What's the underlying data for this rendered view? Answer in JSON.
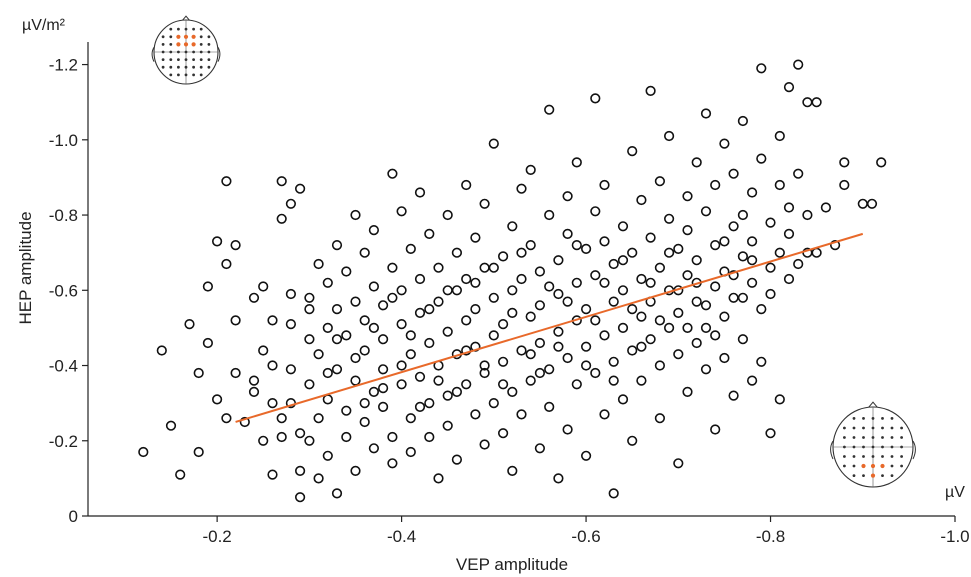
{
  "chart_data": {
    "type": "scatter",
    "xlabel": "VEP amplitude",
    "ylabel": "HEP amplitude",
    "x_unit": "µV",
    "y_unit": "µV/m²",
    "x_ticks": [
      -0.2,
      -0.4,
      -0.6,
      -0.8,
      -1.0
    ],
    "x_tick_labels": [
      "-0.2",
      "-0.4",
      "-0.6",
      "-0.8",
      "-1.0"
    ],
    "y_ticks": [
      0,
      -0.2,
      -0.4,
      -0.6,
      -0.8,
      -1.0,
      -1.2
    ],
    "y_tick_labels": [
      "0",
      "-0.2",
      "-0.4",
      "-0.6",
      "-0.8",
      "-1.0",
      "-1.2"
    ],
    "xlim": [
      -0.06,
      -1.0
    ],
    "ylim": [
      0,
      -1.26
    ],
    "grid": false,
    "marker": "open-circle",
    "regression_line": {
      "x": [
        -0.22,
        -0.9
      ],
      "y": [
        -0.25,
        -0.75
      ],
      "color": "#e8692a"
    },
    "highlight_color": "#e8692a",
    "points": [
      [
        -0.12,
        -0.17
      ],
      [
        -0.14,
        -0.44
      ],
      [
        -0.15,
        -0.24
      ],
      [
        -0.16,
        -0.11
      ],
      [
        -0.17,
        -0.51
      ],
      [
        -0.18,
        -0.38
      ],
      [
        -0.18,
        -0.17
      ],
      [
        -0.19,
        -0.61
      ],
      [
        -0.19,
        -0.46
      ],
      [
        -0.2,
        -0.31
      ],
      [
        -0.2,
        -0.73
      ],
      [
        -0.21,
        -0.89
      ],
      [
        -0.21,
        -0.26
      ],
      [
        -0.21,
        -0.67
      ],
      [
        -0.22,
        -0.38
      ],
      [
        -0.22,
        -0.72
      ],
      [
        -0.22,
        -0.52
      ],
      [
        -0.23,
        -0.25
      ],
      [
        -0.24,
        -0.58
      ],
      [
        -0.24,
        -0.33
      ],
      [
        -0.25,
        -0.44
      ],
      [
        -0.25,
        -0.2
      ],
      [
        -0.25,
        -0.61
      ],
      [
        -0.26,
        -0.11
      ],
      [
        -0.26,
        -0.52
      ],
      [
        -0.26,
        -0.3
      ],
      [
        -0.27,
        -0.26
      ],
      [
        -0.27,
        -0.79
      ],
      [
        -0.27,
        -0.89
      ],
      [
        -0.27,
        -0.21
      ],
      [
        -0.28,
        -0.83
      ],
      [
        -0.28,
        -0.59
      ],
      [
        -0.28,
        -0.39
      ],
      [
        -0.28,
        -0.51
      ],
      [
        -0.29,
        -0.22
      ],
      [
        -0.29,
        -0.05
      ],
      [
        -0.29,
        -0.87
      ],
      [
        -0.29,
        -0.12
      ],
      [
        -0.3,
        -0.47
      ],
      [
        -0.3,
        -0.58
      ],
      [
        -0.3,
        -0.35
      ],
      [
        -0.3,
        -0.2
      ],
      [
        -0.31,
        -0.43
      ],
      [
        -0.31,
        -0.26
      ],
      [
        -0.31,
        -0.1
      ],
      [
        -0.31,
        -0.67
      ],
      [
        -0.32,
        -0.5
      ],
      [
        -0.32,
        -0.62
      ],
      [
        -0.32,
        -0.31
      ],
      [
        -0.32,
        -0.16
      ],
      [
        -0.33,
        -0.72
      ],
      [
        -0.33,
        -0.39
      ],
      [
        -0.33,
        -0.06
      ],
      [
        -0.33,
        -0.55
      ],
      [
        -0.34,
        -0.21
      ],
      [
        -0.34,
        -0.48
      ],
      [
        -0.34,
        -0.28
      ],
      [
        -0.34,
        -0.65
      ],
      [
        -0.35,
        -0.8
      ],
      [
        -0.35,
        -0.36
      ],
      [
        -0.35,
        -0.12
      ],
      [
        -0.35,
        -0.57
      ],
      [
        -0.36,
        -0.44
      ],
      [
        -0.36,
        -0.25
      ],
      [
        -0.36,
        -0.7
      ],
      [
        -0.36,
        -0.52
      ],
      [
        -0.37,
        -0.33
      ],
      [
        -0.37,
        -0.18
      ],
      [
        -0.37,
        -0.61
      ],
      [
        -0.37,
        -0.76
      ],
      [
        -0.38,
        -0.47
      ],
      [
        -0.38,
        -0.29
      ],
      [
        -0.38,
        -0.56
      ],
      [
        -0.38,
        -0.39
      ],
      [
        -0.39,
        -0.91
      ],
      [
        -0.39,
        -0.21
      ],
      [
        -0.39,
        -0.66
      ],
      [
        -0.39,
        -0.14
      ],
      [
        -0.4,
        -0.51
      ],
      [
        -0.4,
        -0.35
      ],
      [
        -0.4,
        -0.81
      ],
      [
        -0.4,
        -0.6
      ],
      [
        -0.41,
        -0.43
      ],
      [
        -0.41,
        -0.26
      ],
      [
        -0.41,
        -0.71
      ],
      [
        -0.41,
        -0.17
      ],
      [
        -0.42,
        -0.54
      ],
      [
        -0.42,
        -0.37
      ],
      [
        -0.42,
        -0.63
      ],
      [
        -0.42,
        -0.86
      ],
      [
        -0.43,
        -0.46
      ],
      [
        -0.43,
        -0.3
      ],
      [
        -0.43,
        -0.75
      ],
      [
        -0.43,
        -0.21
      ],
      [
        -0.44,
        -0.57
      ],
      [
        -0.44,
        -0.4
      ],
      [
        -0.44,
        -0.1
      ],
      [
        -0.44,
        -0.66
      ],
      [
        -0.45,
        -0.49
      ],
      [
        -0.45,
        -0.32
      ],
      [
        -0.45,
        -0.8
      ],
      [
        -0.45,
        -0.24
      ],
      [
        -0.46,
        -0.6
      ],
      [
        -0.46,
        -0.43
      ],
      [
        -0.46,
        -0.7
      ],
      [
        -0.46,
        -0.15
      ],
      [
        -0.47,
        -0.52
      ],
      [
        -0.47,
        -0.35
      ],
      [
        -0.47,
        -0.88
      ],
      [
        -0.47,
        -0.63
      ],
      [
        -0.48,
        -0.45
      ],
      [
        -0.48,
        -0.27
      ],
      [
        -0.48,
        -0.74
      ],
      [
        -0.48,
        -0.55
      ],
      [
        -0.49,
        -0.38
      ],
      [
        -0.49,
        -0.19
      ],
      [
        -0.49,
        -0.66
      ],
      [
        -0.49,
        -0.83
      ],
      [
        -0.5,
        -0.48
      ],
      [
        -0.5,
        -0.3
      ],
      [
        -0.5,
        -0.58
      ],
      [
        -0.5,
        -0.99
      ],
      [
        -0.51,
        -0.41
      ],
      [
        -0.51,
        -0.22
      ],
      [
        -0.51,
        -0.69
      ],
      [
        -0.51,
        -0.51
      ],
      [
        -0.52,
        -0.77
      ],
      [
        -0.52,
        -0.33
      ],
      [
        -0.52,
        -0.6
      ],
      [
        -0.52,
        -0.12
      ],
      [
        -0.53,
        -0.44
      ],
      [
        -0.53,
        -0.87
      ],
      [
        -0.53,
        -0.63
      ],
      [
        -0.53,
        -0.27
      ],
      [
        -0.54,
        -0.53
      ],
      [
        -0.54,
        -0.36
      ],
      [
        -0.54,
        -0.72
      ],
      [
        -0.54,
        -0.92
      ],
      [
        -0.55,
        -0.46
      ],
      [
        -0.55,
        -0.18
      ],
      [
        -0.55,
        -0.65
      ],
      [
        -0.55,
        -0.56
      ],
      [
        -0.56,
        -0.39
      ],
      [
        -0.56,
        -0.8
      ],
      [
        -0.56,
        -1.08
      ],
      [
        -0.56,
        -0.29
      ],
      [
        -0.57,
        -0.49
      ],
      [
        -0.57,
        -0.68
      ],
      [
        -0.57,
        -0.59
      ],
      [
        -0.57,
        -0.1
      ],
      [
        -0.58,
        -0.42
      ],
      [
        -0.58,
        -0.85
      ],
      [
        -0.58,
        -0.23
      ],
      [
        -0.58,
        -0.75
      ],
      [
        -0.59,
        -0.52
      ],
      [
        -0.59,
        -0.35
      ],
      [
        -0.59,
        -0.62
      ],
      [
        -0.59,
        -0.94
      ],
      [
        -0.6,
        -0.45
      ],
      [
        -0.6,
        -0.71
      ],
      [
        -0.6,
        -0.16
      ],
      [
        -0.6,
        -0.55
      ],
      [
        -0.61,
        -0.81
      ],
      [
        -0.61,
        -0.38
      ],
      [
        -0.61,
        -0.64
      ],
      [
        -0.61,
        -1.11
      ],
      [
        -0.62,
        -0.48
      ],
      [
        -0.62,
        -0.27
      ],
      [
        -0.62,
        -0.73
      ],
      [
        -0.62,
        -0.88
      ],
      [
        -0.63,
        -0.57
      ],
      [
        -0.63,
        -0.41
      ],
      [
        -0.63,
        -0.67
      ],
      [
        -0.63,
        -0.06
      ],
      [
        -0.64,
        -0.5
      ],
      [
        -0.64,
        -0.77
      ],
      [
        -0.64,
        -0.31
      ],
      [
        -0.64,
        -0.6
      ],
      [
        -0.65,
        -0.97
      ],
      [
        -0.65,
        -0.44
      ],
      [
        -0.65,
        -0.7
      ],
      [
        -0.65,
        -0.2
      ],
      [
        -0.66,
        -0.53
      ],
      [
        -0.66,
        -0.84
      ],
      [
        -0.66,
        -0.63
      ],
      [
        -0.66,
        -0.36
      ],
      [
        -0.67,
        -0.74
      ],
      [
        -0.67,
        -0.47
      ],
      [
        -0.67,
        -1.13
      ],
      [
        -0.67,
        -0.57
      ],
      [
        -0.68,
        -0.89
      ],
      [
        -0.68,
        -0.4
      ],
      [
        -0.68,
        -0.66
      ],
      [
        -0.68,
        -0.26
      ],
      [
        -0.69,
        -0.5
      ],
      [
        -0.69,
        -0.79
      ],
      [
        -0.69,
        -0.6
      ],
      [
        -0.69,
        -1.01
      ],
      [
        -0.7,
        -0.43
      ],
      [
        -0.7,
        -0.71
      ],
      [
        -0.7,
        -0.14
      ],
      [
        -0.7,
        -0.54
      ],
      [
        -0.71,
        -0.85
      ],
      [
        -0.71,
        -0.64
      ],
      [
        -0.71,
        -0.33
      ],
      [
        -0.71,
        -0.76
      ],
      [
        -0.72,
        -0.46
      ],
      [
        -0.72,
        -0.94
      ],
      [
        -0.72,
        -0.57
      ],
      [
        -0.72,
        -0.68
      ],
      [
        -0.73,
        -1.07
      ],
      [
        -0.73,
        -0.39
      ],
      [
        -0.73,
        -0.81
      ],
      [
        -0.73,
        -0.5
      ],
      [
        -0.74,
        -0.61
      ],
      [
        -0.74,
        -0.72
      ],
      [
        -0.74,
        -0.88
      ],
      [
        -0.74,
        -0.23
      ],
      [
        -0.75,
        -0.53
      ],
      [
        -0.75,
        -0.99
      ],
      [
        -0.75,
        -0.65
      ],
      [
        -0.75,
        -0.42
      ],
      [
        -0.76,
        -0.77
      ],
      [
        -0.76,
        -0.32
      ],
      [
        -0.76,
        -0.58
      ],
      [
        -0.76,
        -0.91
      ],
      [
        -0.77,
        -0.69
      ],
      [
        -0.77,
        -0.47
      ],
      [
        -0.77,
        -1.05
      ],
      [
        -0.77,
        -0.8
      ],
      [
        -0.78,
        -0.62
      ],
      [
        -0.78,
        -0.36
      ],
      [
        -0.78,
        -0.73
      ],
      [
        -0.78,
        -0.86
      ],
      [
        -0.79,
        -1.19
      ],
      [
        -0.79,
        -0.55
      ],
      [
        -0.79,
        -0.95
      ],
      [
        -0.79,
        -0.41
      ],
      [
        -0.8,
        -0.66
      ],
      [
        -0.8,
        -0.78
      ],
      [
        -0.8,
        -0.22
      ],
      [
        -0.8,
        -0.59
      ],
      [
        -0.81,
        -1.01
      ],
      [
        -0.81,
        -0.7
      ],
      [
        -0.81,
        -0.88
      ],
      [
        -0.81,
        -0.31
      ],
      [
        -0.82,
        -0.63
      ],
      [
        -0.82,
        -0.82
      ],
      [
        -0.82,
        -1.14
      ],
      [
        -0.82,
        -0.75
      ],
      [
        -0.83,
        -0.67
      ],
      [
        -0.83,
        -0.91
      ],
      [
        -0.83,
        -1.2
      ],
      [
        -0.84,
        -0.7
      ],
      [
        -0.84,
        -1.1
      ],
      [
        -0.84,
        -0.8
      ],
      [
        -0.85,
        -1.1
      ],
      [
        -0.85,
        -0.7
      ],
      [
        -0.86,
        -0.82
      ],
      [
        -0.87,
        -0.72
      ],
      [
        -0.88,
        -0.88
      ],
      [
        -0.88,
        -0.94
      ],
      [
        -0.9,
        -0.83
      ],
      [
        -0.91,
        -0.83
      ],
      [
        -0.92,
        -0.94
      ],
      [
        -0.24,
        -0.36
      ],
      [
        -0.26,
        -0.4
      ],
      [
        -0.28,
        -0.3
      ],
      [
        -0.3,
        -0.55
      ],
      [
        -0.32,
        -0.38
      ],
      [
        -0.33,
        -0.47
      ],
      [
        -0.35,
        -0.42
      ],
      [
        -0.36,
        -0.3
      ],
      [
        -0.37,
        -0.5
      ],
      [
        -0.38,
        -0.34
      ],
      [
        -0.39,
        -0.58
      ],
      [
        -0.4,
        -0.4
      ],
      [
        -0.41,
        -0.48
      ],
      [
        -0.42,
        -0.29
      ],
      [
        -0.43,
        -0.55
      ],
      [
        -0.44,
        -0.36
      ],
      [
        -0.45,
        -0.6
      ],
      [
        -0.46,
        -0.33
      ],
      [
        -0.47,
        -0.44
      ],
      [
        -0.48,
        -0.62
      ],
      [
        -0.49,
        -0.4
      ],
      [
        -0.5,
        -0.66
      ],
      [
        -0.51,
        -0.35
      ],
      [
        -0.52,
        -0.54
      ],
      [
        -0.53,
        -0.7
      ],
      [
        -0.54,
        -0.43
      ],
      [
        -0.55,
        -0.38
      ],
      [
        -0.56,
        -0.61
      ],
      [
        -0.57,
        -0.45
      ],
      [
        -0.58,
        -0.57
      ],
      [
        -0.59,
        -0.72
      ],
      [
        -0.6,
        -0.4
      ],
      [
        -0.61,
        -0.52
      ],
      [
        -0.62,
        -0.62
      ],
      [
        -0.63,
        -0.36
      ],
      [
        -0.64,
        -0.68
      ],
      [
        -0.65,
        -0.55
      ],
      [
        -0.66,
        -0.45
      ],
      [
        -0.67,
        -0.62
      ],
      [
        -0.68,
        -0.52
      ],
      [
        -0.69,
        -0.7
      ],
      [
        -0.7,
        -0.6
      ],
      [
        -0.71,
        -0.5
      ],
      [
        -0.72,
        -0.62
      ],
      [
        -0.73,
        -0.56
      ],
      [
        -0.74,
        -0.48
      ],
      [
        -0.75,
        -0.73
      ],
      [
        -0.76,
        -0.64
      ],
      [
        -0.77,
        -0.58
      ],
      [
        -0.78,
        -0.68
      ]
    ]
  }
}
